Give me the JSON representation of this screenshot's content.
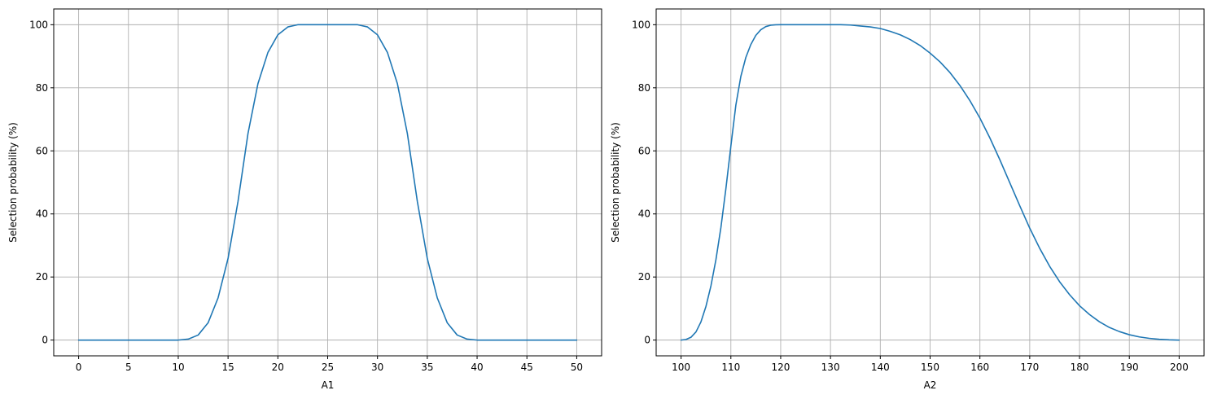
{
  "figure": {
    "line_color": "#1f77b4",
    "grid_color": "#b0b0b0",
    "axis_color": "#000000"
  },
  "chart_data": [
    {
      "type": "line",
      "title": "",
      "xlabel": "A1",
      "ylabel": "Selection probability (%)",
      "xlim": [
        -2.5,
        52.5
      ],
      "ylim": [
        -5,
        105
      ],
      "xticks": [
        0,
        5,
        10,
        15,
        20,
        25,
        30,
        35,
        40,
        45,
        50
      ],
      "yticks": [
        0,
        20,
        40,
        60,
        80,
        100
      ],
      "grid": true,
      "legend": "none",
      "series": [
        {
          "x": [
            0,
            1,
            2,
            3,
            4,
            5,
            6,
            7,
            8,
            9,
            10,
            11,
            12,
            13,
            14,
            15,
            16,
            17,
            18,
            19,
            20,
            21,
            22,
            23,
            24,
            25,
            26,
            27,
            28,
            29,
            30,
            31,
            32,
            33,
            34,
            35,
            36,
            37,
            38,
            39,
            40,
            41,
            42,
            43,
            44,
            45,
            46,
            47,
            48,
            49,
            50
          ],
          "y": [
            0,
            0,
            0,
            0,
            0,
            0,
            0,
            0,
            0,
            0,
            0,
            0.3,
            1.6,
            5.5,
            13.4,
            25.9,
            44,
            65.5,
            81.3,
            91.2,
            96.8,
            99.3,
            100,
            100,
            100,
            100,
            100,
            100,
            100,
            99.3,
            96.8,
            91.2,
            81.3,
            65.5,
            44,
            25.9,
            13.4,
            5.5,
            1.6,
            0.3,
            0,
            0,
            0,
            0,
            0,
            0,
            0,
            0,
            0,
            0,
            0
          ]
        }
      ]
    },
    {
      "type": "line",
      "title": "",
      "xlabel": "A2",
      "ylabel": "Selection probability (%)",
      "xlim": [
        95,
        205
      ],
      "ylim": [
        -5,
        105
      ],
      "xticks": [
        100,
        110,
        120,
        130,
        140,
        150,
        160,
        170,
        180,
        190,
        200
      ],
      "yticks": [
        0,
        20,
        40,
        60,
        80,
        100
      ],
      "grid": true,
      "legend": "none",
      "series": [
        {
          "x": [
            100,
            101,
            102,
            103,
            104,
            105,
            106,
            107,
            108,
            109,
            110,
            111,
            112,
            113,
            114,
            115,
            116,
            117,
            118,
            119,
            120,
            122,
            124,
            126,
            128,
            130,
            132,
            134,
            136,
            138,
            140,
            142,
            144,
            146,
            148,
            150,
            152,
            154,
            156,
            158,
            160,
            162,
            164,
            166,
            168,
            170,
            172,
            174,
            176,
            178,
            180,
            182,
            184,
            186,
            188,
            190,
            192,
            194,
            196,
            198,
            200
          ],
          "y": [
            0,
            0.2,
            0.9,
            2.6,
            5.8,
            10.7,
            17.2,
            25.5,
            35.7,
            48,
            61.5,
            74.5,
            83.6,
            89.6,
            93.7,
            96.6,
            98.4,
            99.4,
            99.85,
            99.97,
            100,
            100,
            100,
            100,
            100,
            100,
            100,
            99.9,
            99.6,
            99.3,
            98.8,
            97.9,
            96.8,
            95.3,
            93.4,
            91,
            88.2,
            84.8,
            80.7,
            75.9,
            70.4,
            64.1,
            57.2,
            49.9,
            42.6,
            35.5,
            29.1,
            23.4,
            18.5,
            14.4,
            10.9,
            8.1,
            5.8,
            4,
            2.7,
            1.7,
            1,
            0.55,
            0.25,
            0.08,
            0
          ]
        }
      ]
    }
  ]
}
